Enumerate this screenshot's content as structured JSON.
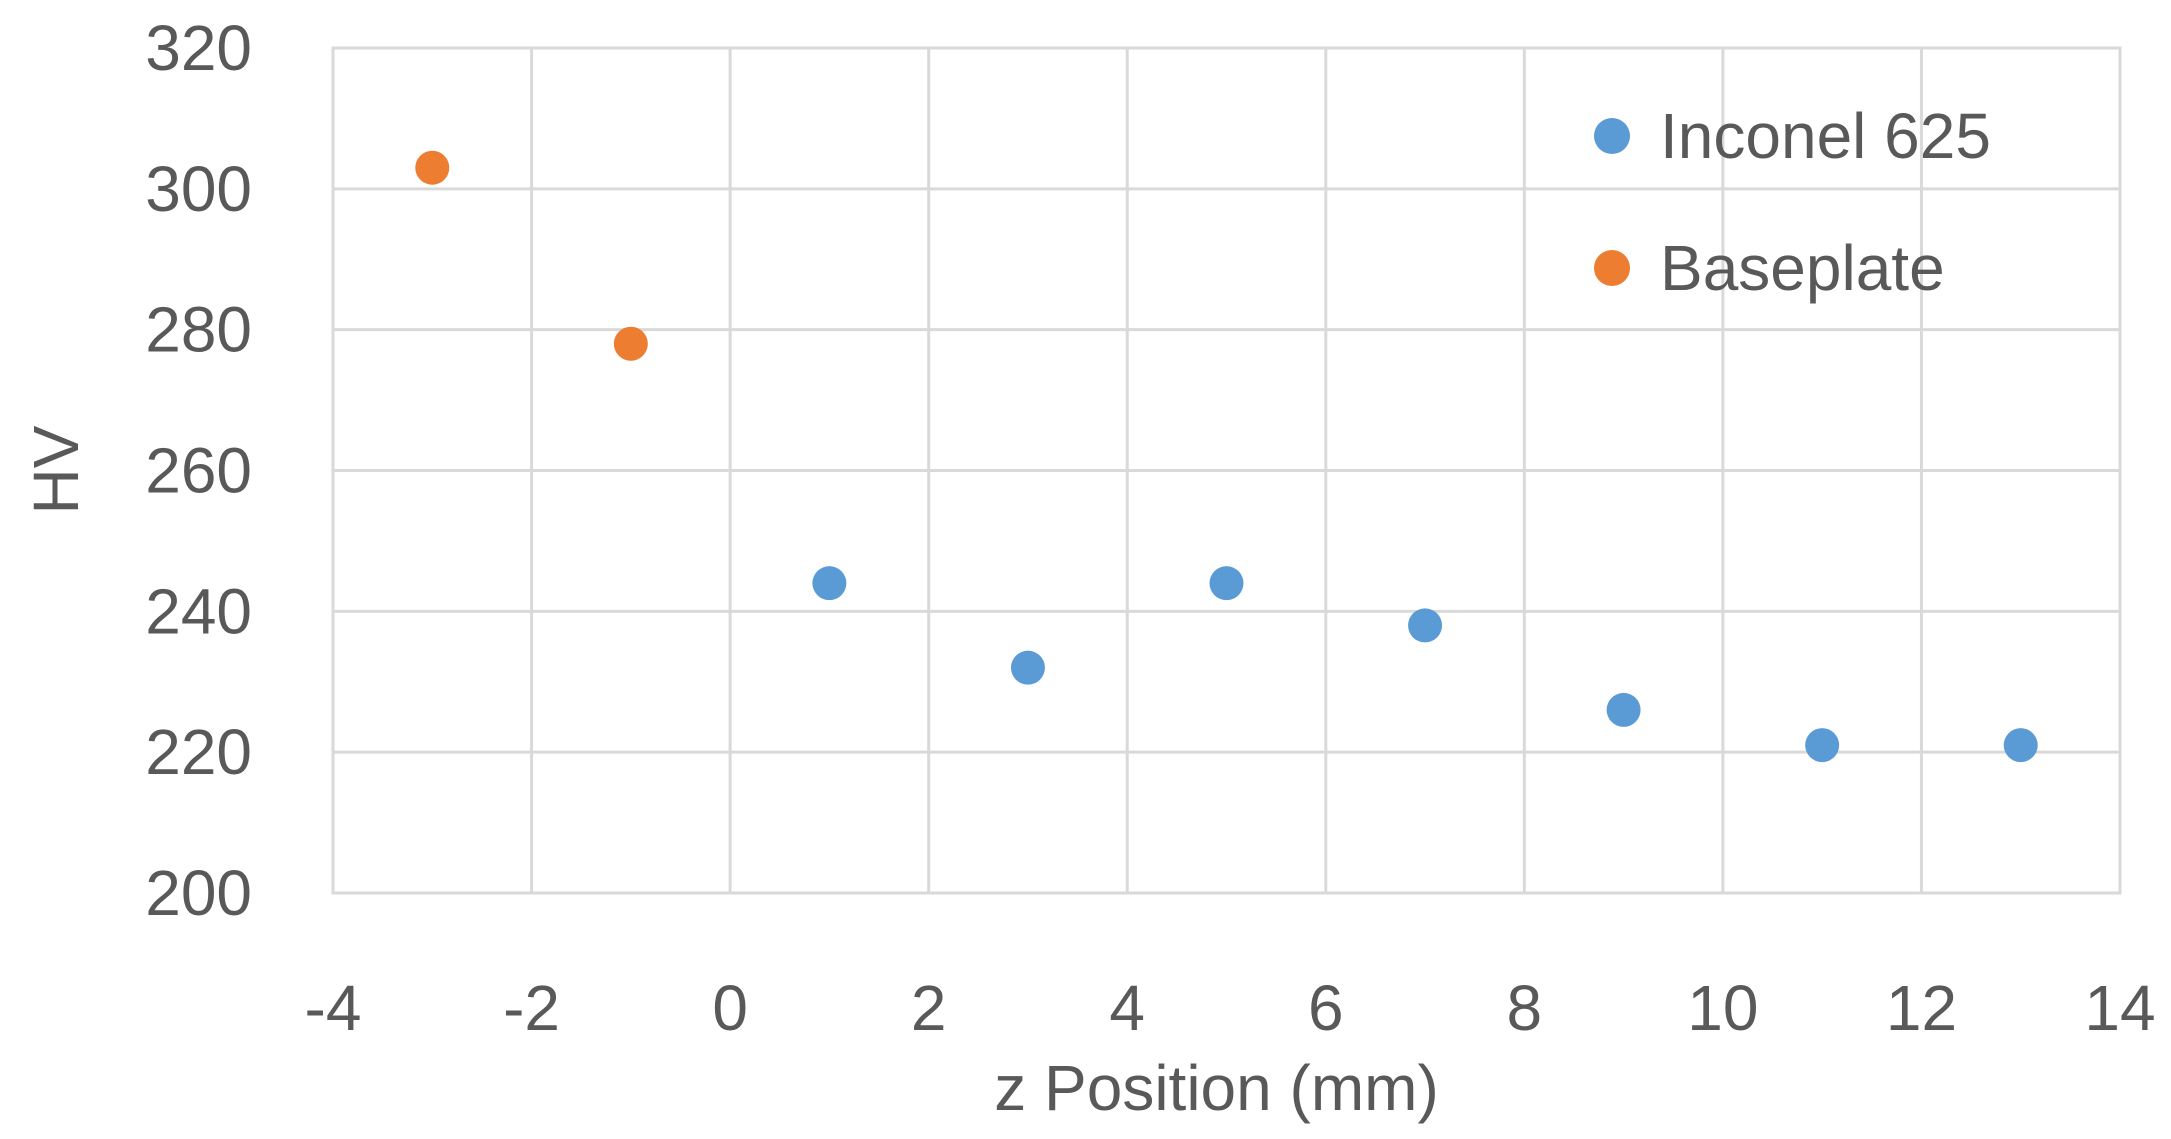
{
  "chart_data": {
    "type": "scatter",
    "title": "",
    "xlabel": "z Position (mm)",
    "ylabel": "HV",
    "xlim": [
      -4,
      14
    ],
    "ylim": [
      200,
      320
    ],
    "xticks": [
      -4,
      -2,
      0,
      2,
      4,
      6,
      8,
      10,
      12,
      14
    ],
    "yticks": [
      200,
      220,
      240,
      260,
      280,
      300,
      320
    ],
    "grid": true,
    "legend_position": "top-right",
    "series": [
      {
        "name": "Inconel 625",
        "color": "#5b9bd5",
        "points": [
          {
            "x": 1,
            "y": 244
          },
          {
            "x": 3,
            "y": 232
          },
          {
            "x": 5,
            "y": 244
          },
          {
            "x": 7,
            "y": 238
          },
          {
            "x": 9,
            "y": 226
          },
          {
            "x": 11,
            "y": 221
          },
          {
            "x": 13,
            "y": 221
          }
        ]
      },
      {
        "name": "Baseplate",
        "color": "#ed7d31",
        "points": [
          {
            "x": -3,
            "y": 303
          },
          {
            "x": -1,
            "y": 278
          }
        ]
      }
    ]
  }
}
